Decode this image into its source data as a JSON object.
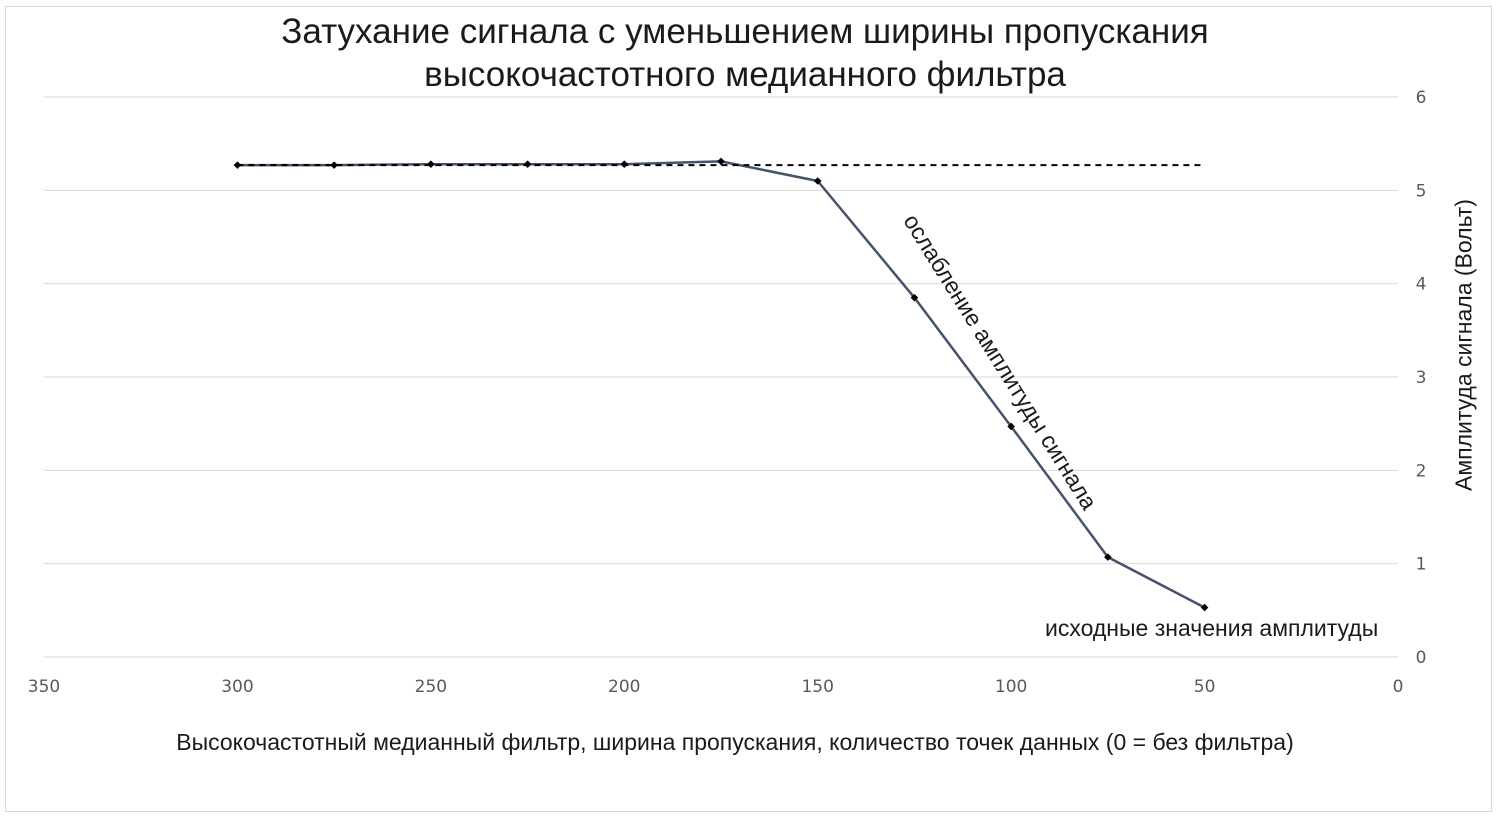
{
  "chart_data": {
    "type": "line",
    "title": [
      "Затухание сигнала с уменьшением ширины пропускания",
      "высокочастотного медианного фильтра"
    ],
    "xlabel": "Высокочастотный медианный фильтр, ширина пропускания, количество точек данных (0 = без фильтра)",
    "ylabel": "Амплитуда сигнала (Вольт)",
    "x_reversed": true,
    "y_axis_side": "right",
    "xlim": [
      0,
      350
    ],
    "ylim": [
      0,
      6
    ],
    "x_ticks": [
      350,
      300,
      250,
      200,
      150,
      100,
      50,
      0
    ],
    "y_ticks": [
      0,
      1,
      2,
      3,
      4,
      5,
      6
    ],
    "grid": "horizontal",
    "legend": "none",
    "series": [
      {
        "style": "solid",
        "color": "#44546a",
        "marker": "diamond",
        "x": [
          300,
          275,
          250,
          225,
          200,
          175,
          150,
          125,
          100,
          75,
          50
        ],
        "y": [
          5.27,
          5.27,
          5.28,
          5.28,
          5.28,
          5.31,
          5.1,
          3.85,
          2.47,
          1.07,
          0.53
        ]
      },
      {
        "style": "dashed",
        "color": "#000000",
        "x": [
          300,
          50
        ],
        "y": [
          5.27,
          5.27
        ]
      }
    ],
    "annotations": [
      "ослабление амплитуды сигнала",
      "исходные значения амплитуды"
    ]
  }
}
